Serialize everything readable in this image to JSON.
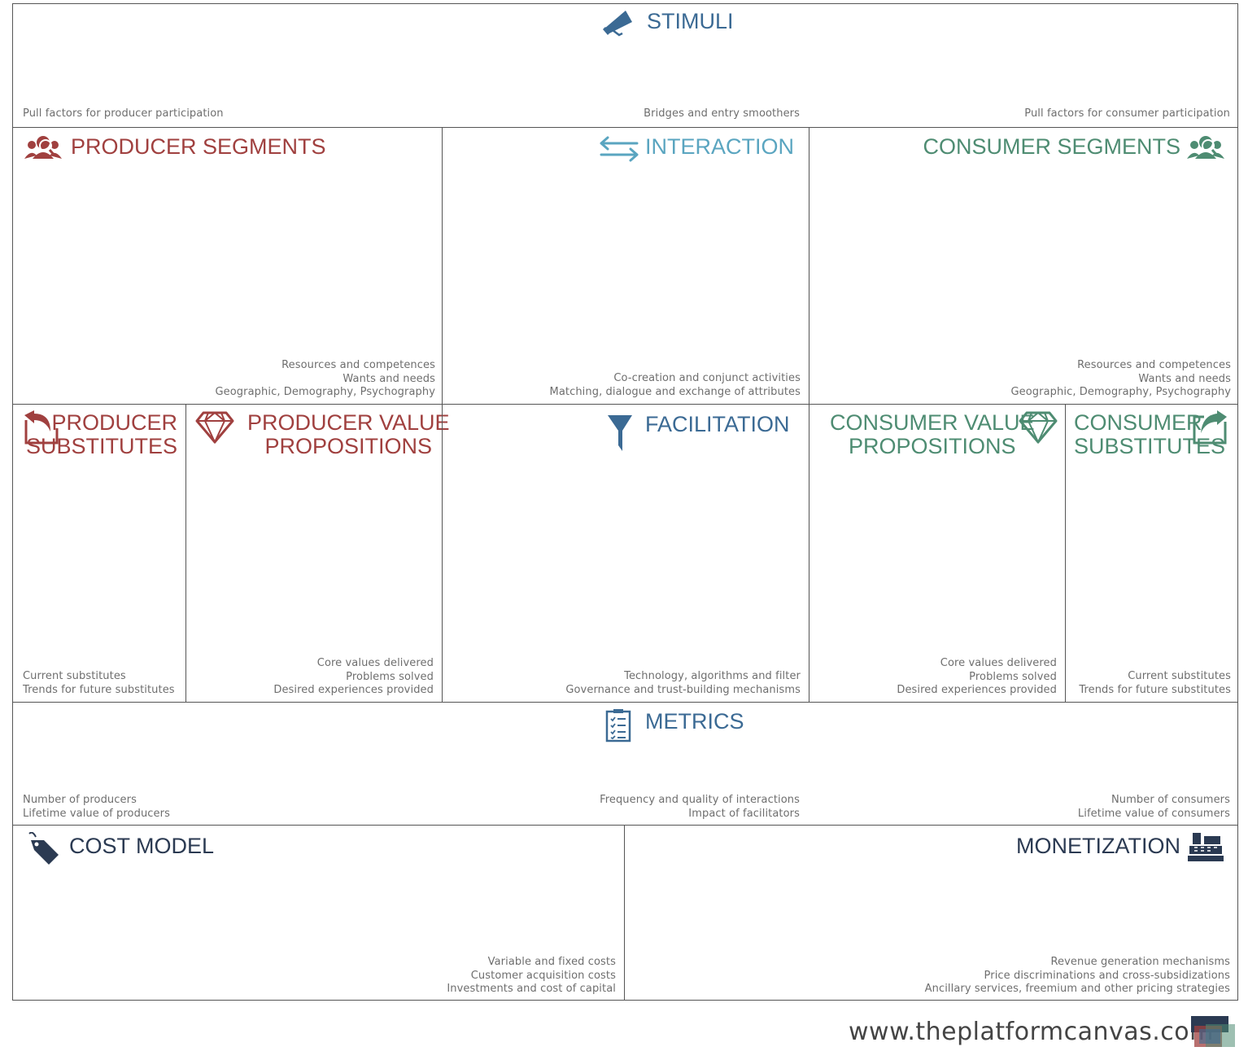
{
  "stimuli": {
    "title": "STIMULI",
    "notes": {
      "left": "Pull factors for producer participation",
      "center": "Bridges and entry smoothers",
      "right": "Pull factors for consumer participation"
    }
  },
  "producer_segments": {
    "title": "PRODUCER SEGMENTS",
    "notes": [
      "Resources and competences",
      "Wants and needs",
      "Geographic, Demography, Psychography"
    ]
  },
  "interaction": {
    "title": "INTERACTION",
    "notes": [
      "Co-creation and conjunct activities",
      "Matching,  dialogue and exchange of attributes"
    ]
  },
  "consumer_segments": {
    "title": "CONSUMER SEGMENTS",
    "notes": [
      "Resources and competences",
      "Wants and needs",
      "Geographic, Demography, Psychography"
    ]
  },
  "producer_substitutes": {
    "title_lines": [
      "PRODUCER",
      "SUBSTITUTES"
    ],
    "notes": [
      "Current substitutes",
      "Trends for future substitutes"
    ]
  },
  "producer_value_propositions": {
    "title_lines": [
      "PRODUCER VALUE",
      "PROPOSITIONS"
    ],
    "notes": [
      "Core values delivered",
      "Problems solved",
      "Desired experiences provided"
    ]
  },
  "facilitation": {
    "title": "FACILITATION",
    "notes": [
      "Technology, algorithms and filter",
      "Governance and trust-building mechanisms"
    ]
  },
  "consumer_value_propositions": {
    "title_lines": [
      "CONSUMER VALUE",
      "PROPOSITIONS"
    ],
    "notes": [
      "Core values delivered",
      "Problems solved",
      "Desired experiences provided"
    ]
  },
  "consumer_substitutes": {
    "title_lines": [
      "CONSUMER",
      "SUBSTITUTES"
    ],
    "notes": [
      "Current substitutes",
      "Trends for future substitutes"
    ]
  },
  "metrics": {
    "title": "METRICS",
    "notes_left": [
      "Number of producers",
      "Lifetime value of producers"
    ],
    "notes_center": [
      "Frequency and quality of interactions",
      "Impact of facilitators"
    ],
    "notes_right": [
      "Number of consumers",
      "Lifetime value of consumers"
    ]
  },
  "cost_model": {
    "title": "COST MODEL",
    "notes": [
      "Variable and fixed costs",
      "Customer acquisition costs",
      "Investments  and cost of capital"
    ]
  },
  "monetization": {
    "title": "MONETIZATION",
    "notes": [
      "Revenue generation mechanisms",
      "Price discriminations and cross-subsidizations",
      "Ancillary services, freemium and other pricing strategies"
    ]
  },
  "footer": {
    "url": "www.theplatformcanvas.com"
  },
  "icons": {
    "stimuli": "megaphone-icon",
    "producer_segments": "people-group-icon",
    "interaction": "two-way-arrows-icon",
    "consumer_segments": "people-group-icon",
    "producer_substitutes": "reply-arrow-icon",
    "producer_value_propositions": "diamond-icon",
    "facilitation": "funnel-icon",
    "consumer_value_propositions": "diamond-icon",
    "consumer_substitutes": "share-arrow-icon",
    "metrics": "checklist-icon",
    "cost_model": "price-tag-icon",
    "monetization": "cash-register-icon",
    "footer": "platform-canvas-logo"
  },
  "colors": {
    "producer": "#a0403f",
    "interaction": "#5aa5c0",
    "consumer": "#4e8c72",
    "stimuli": "#3b6a94",
    "cost": "#2b3a52"
  }
}
